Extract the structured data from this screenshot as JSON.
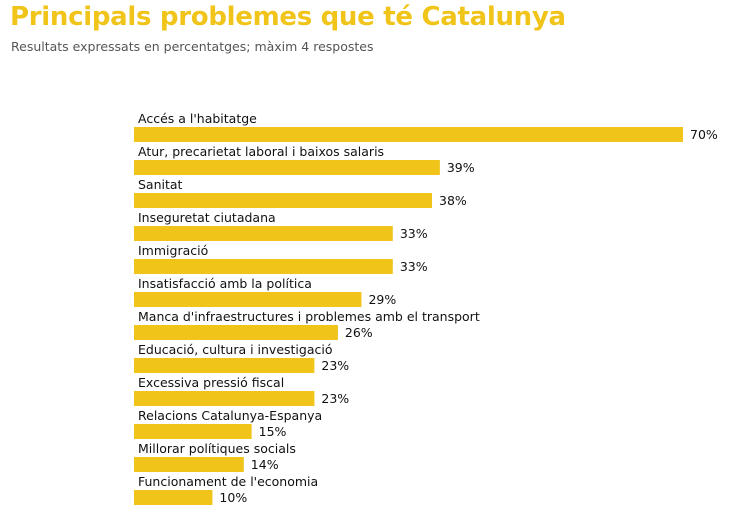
{
  "chart_data": {
    "type": "bar",
    "orientation": "horizontal",
    "title": "Principals problemes que té Catalunya",
    "subtitle": "Resultats expressats en percentatges; màxim 4 respostes",
    "categories": [
      "Accés a l'habitatge",
      "Atur, precarietat laboral i baixos salaris",
      "Sanitat",
      "Inseguretat ciutadana",
      "Immigració",
      "Insatisfacció amb la política",
      "Manca d'infraestructures i problemes amb el transport",
      "Educació, cultura i investigació",
      "Excessiva pressió fiscal",
      "Relacions Catalunya-Espanya",
      "Millorar polítiques socials",
      "Funcionament de l'economia"
    ],
    "values": [
      70,
      39,
      38,
      33,
      33,
      29,
      26,
      23,
      23,
      15,
      14,
      10
    ],
    "value_suffix": "%",
    "grid": false,
    "bar_color": "#F0C419",
    "title_color": "#F0C419"
  }
}
